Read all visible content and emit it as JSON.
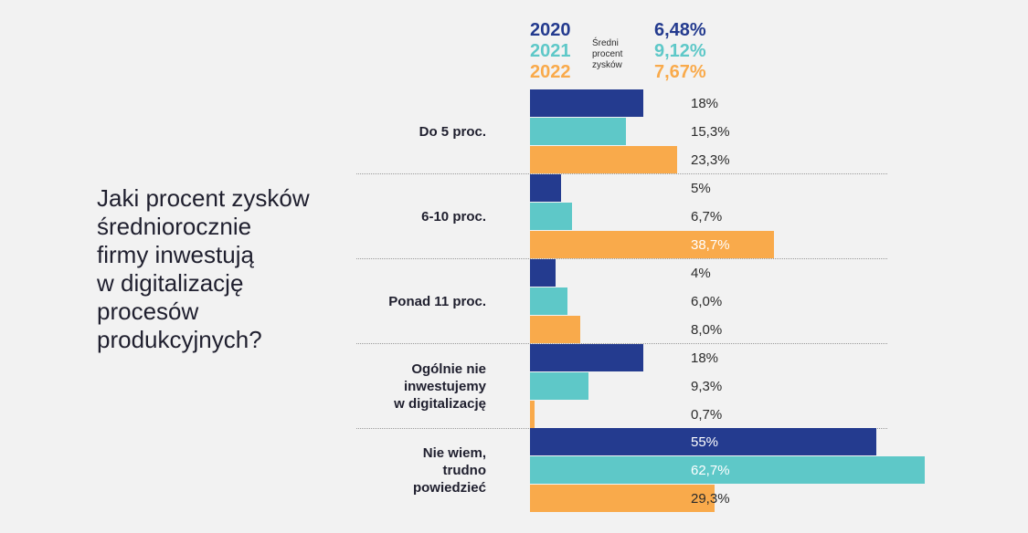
{
  "question": "Jaki procent zysków\nśredniorocznie\nfirmy inwestują\nw digitalizację\nprocesów\nprodukcyjnych?",
  "legend": {
    "years": [
      {
        "label": "2020",
        "color": "#243b8f"
      },
      {
        "label": "2021",
        "color": "#5ec8c8"
      },
      {
        "label": "2022",
        "color": "#f9aa4b"
      }
    ],
    "note": "Średni\nprocent\nzysków",
    "averages": [
      "6,48%",
      "9,12%",
      "7,67%"
    ]
  },
  "chart_data": {
    "type": "bar",
    "orientation": "horizontal",
    "categories": [
      "Do 5 proc.",
      "6-10 proc.",
      "Ponad 11 proc.",
      "Ogólnie nie\ninwestujemy\nw digitalizację",
      "Nie wiem,\ntrudno\npowiedzieć"
    ],
    "series": [
      {
        "name": "2020",
        "color": "#243b8f",
        "values": [
          18,
          5,
          4,
          18,
          55
        ],
        "labels": [
          "18%",
          "5%",
          "4%",
          "18%",
          "55%"
        ]
      },
      {
        "name": "2021",
        "color": "#5ec8c8",
        "values": [
          15.3,
          6.7,
          6.0,
          9.3,
          62.7
        ],
        "labels": [
          "15,3%",
          "6,7%",
          "6,0%",
          "9,3%",
          "62,7%"
        ]
      },
      {
        "name": "2022",
        "color": "#f9aa4b",
        "values": [
          23.3,
          38.7,
          8.0,
          0.7,
          29.3
        ],
        "labels": [
          "23,3%",
          "38,7%",
          "8,0%",
          "0,7%",
          "29,3%"
        ]
      }
    ],
    "xlim": [
      0,
      70
    ],
    "value_labels_visible": true
  }
}
